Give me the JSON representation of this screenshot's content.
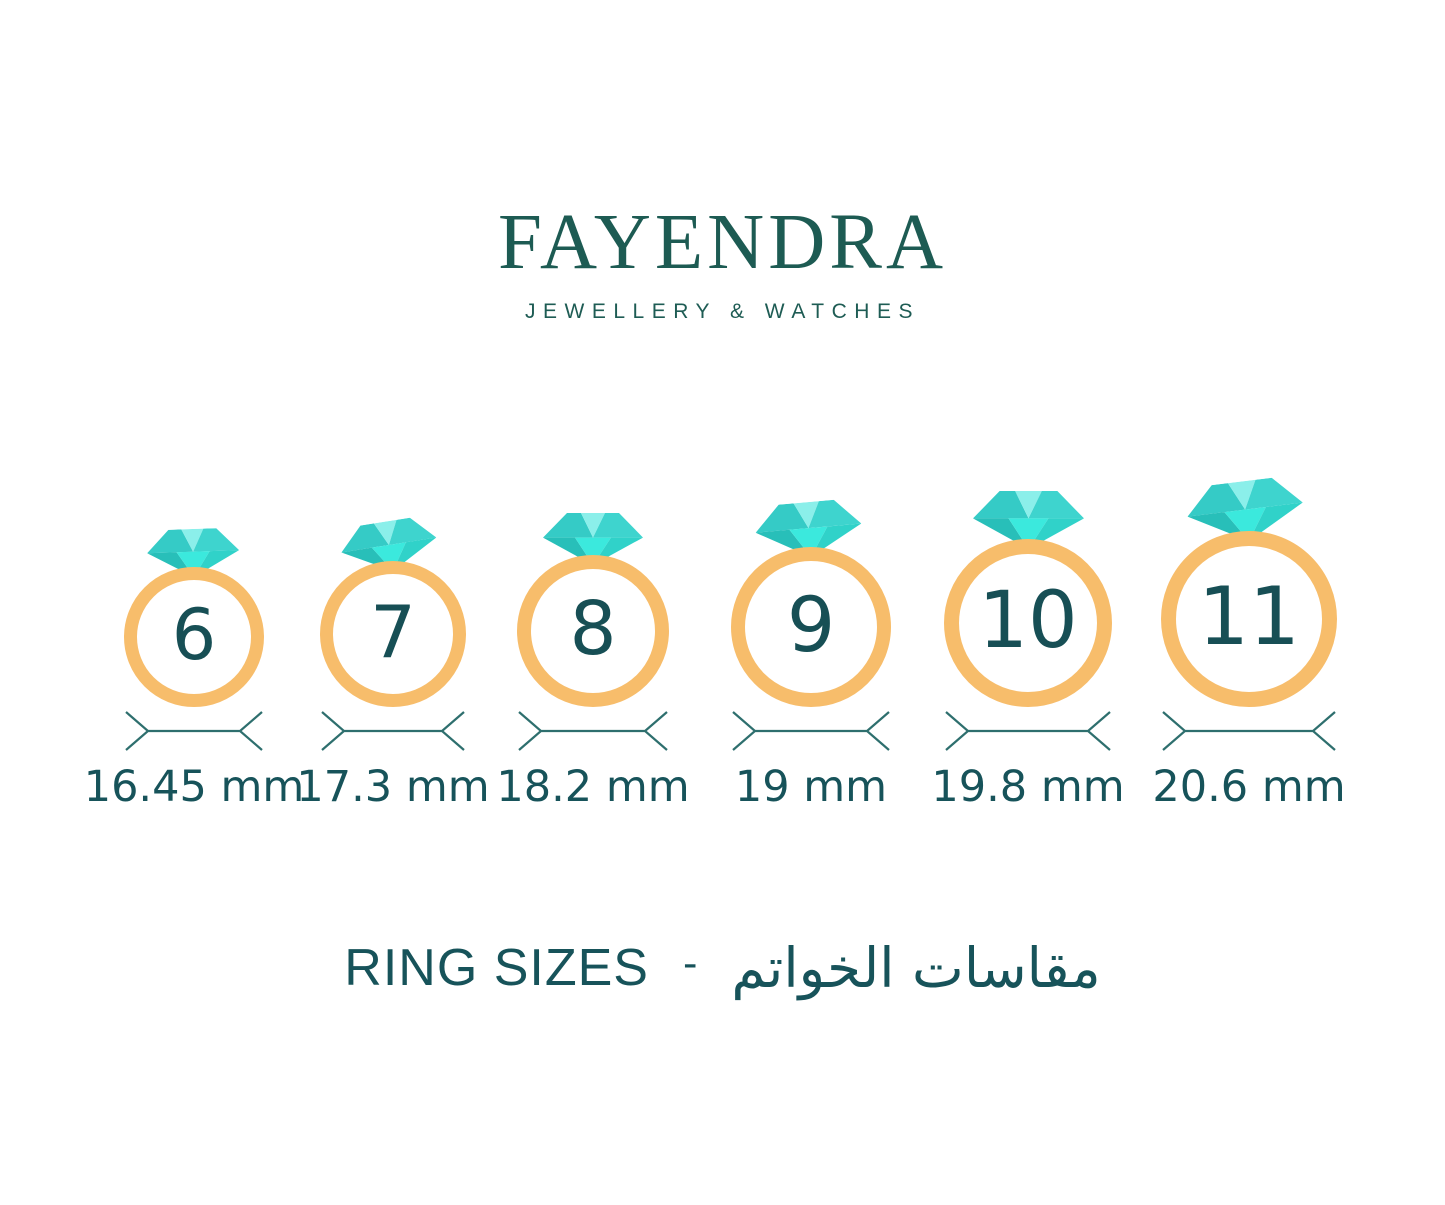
{
  "brand": {
    "name": "FAYENDRA",
    "tagline": "JEWELLERY & WATCHES"
  },
  "rings": [
    {
      "size": "6",
      "diameter": "16.45 mm"
    },
    {
      "size": "7",
      "diameter": "17.3 mm"
    },
    {
      "size": "8",
      "diameter": "18.2 mm"
    },
    {
      "size": "9",
      "diameter": "19 mm"
    },
    {
      "size": "10",
      "diameter": "19.8 mm"
    },
    {
      "size": "11",
      "diameter": "20.6 mm"
    }
  ],
  "caption": {
    "title_en": "RING SIZES",
    "separator": "-",
    "title_ar": "مقاسات الخواتم"
  },
  "colors": {
    "brand_teal": "#1D5B53",
    "text_teal": "#17535A",
    "band_orange": "#F7BD6B",
    "dimension_teal": "#2E6F6E",
    "diamond": {
      "crown_left": "#35CBC6",
      "crown_center": "#8BEFEA",
      "crown_right": "#3ED4CE",
      "pavilion_left": "#28BFB9",
      "pavilion_center": "#3BE9DD",
      "pavilion_right": "#30D2C9"
    }
  }
}
